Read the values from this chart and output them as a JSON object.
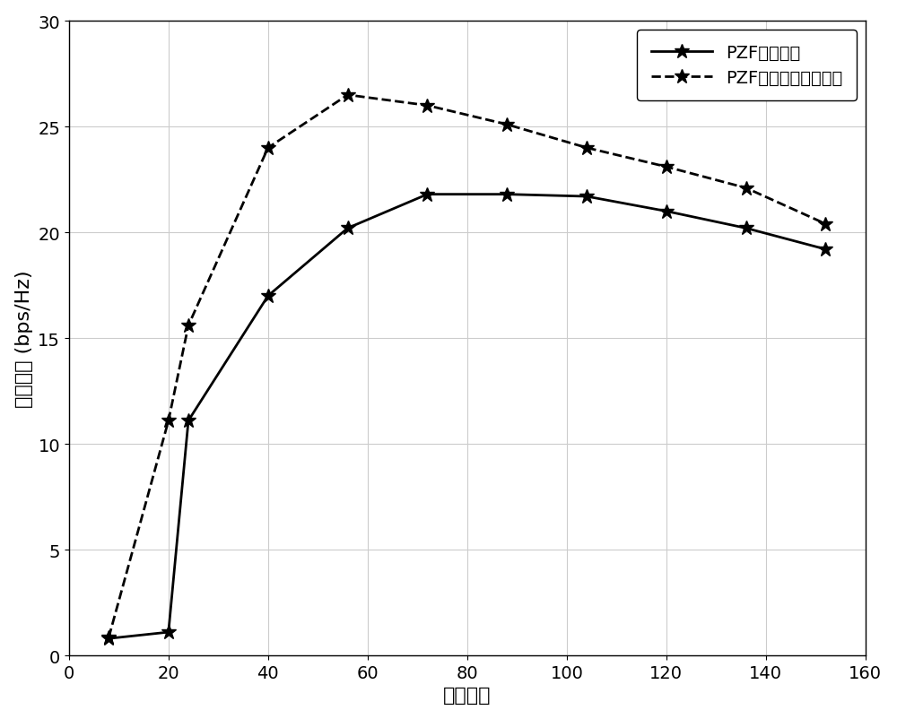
{
  "x": [
    8,
    20,
    24,
    40,
    56,
    72,
    88,
    104,
    120,
    136,
    152
  ],
  "y_solid": [
    0.8,
    1.1,
    11.1,
    17.0,
    20.2,
    21.8,
    21.8,
    21.7,
    21.0,
    20.2,
    19.2
  ],
  "y_dashed": [
    0.85,
    11.1,
    15.6,
    24.0,
    26.5,
    26.0,
    25.1,
    24.0,
    23.1,
    22.1,
    20.4
  ],
  "xlabel": "天线数目",
  "ylabel": "系统容量 (bps/Hz)",
  "legend1": "PZF，不补偿",
  "legend2": "PZF，混合预编码补偿",
  "xlim": [
    0,
    160
  ],
  "ylim": [
    0,
    30
  ],
  "xticks": [
    0,
    20,
    40,
    60,
    80,
    100,
    120,
    140,
    160
  ],
  "yticks": [
    0,
    5,
    10,
    15,
    20,
    25,
    30
  ],
  "line_color": "#000000",
  "grid_color": "#cccccc",
  "background_color": "#ffffff",
  "linewidth": 2.0,
  "markersize": 12
}
